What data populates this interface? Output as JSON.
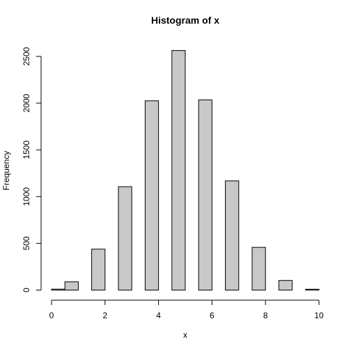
{
  "chart_data": {
    "type": "bar",
    "title": "Histogram of x",
    "xlabel": "x",
    "ylabel": "Frequency",
    "xlim": [
      0,
      10
    ],
    "ylim": [
      0,
      2500
    ],
    "x_ticks": [
      0,
      2,
      4,
      6,
      8,
      10
    ],
    "y_ticks": [
      0,
      500,
      1000,
      1500,
      2000,
      2500
    ],
    "bins": [
      {
        "start": 0.0,
        "end": 0.5,
        "count": 10
      },
      {
        "start": 0.5,
        "end": 1.0,
        "count": 88
      },
      {
        "start": 1.0,
        "end": 1.5,
        "count": 0
      },
      {
        "start": 1.5,
        "end": 2.0,
        "count": 438
      },
      {
        "start": 2.0,
        "end": 2.5,
        "count": 0
      },
      {
        "start": 2.5,
        "end": 3.0,
        "count": 1106
      },
      {
        "start": 3.0,
        "end": 3.5,
        "count": 0
      },
      {
        "start": 3.5,
        "end": 4.0,
        "count": 2025
      },
      {
        "start": 4.0,
        "end": 4.5,
        "count": 0
      },
      {
        "start": 4.5,
        "end": 5.0,
        "count": 2563
      },
      {
        "start": 5.0,
        "end": 5.5,
        "count": 0
      },
      {
        "start": 5.5,
        "end": 6.0,
        "count": 2035
      },
      {
        "start": 6.0,
        "end": 6.5,
        "count": 0
      },
      {
        "start": 6.5,
        "end": 7.0,
        "count": 1168
      },
      {
        "start": 7.0,
        "end": 7.5,
        "count": 0
      },
      {
        "start": 7.5,
        "end": 8.0,
        "count": 457
      },
      {
        "start": 8.0,
        "end": 8.5,
        "count": 0
      },
      {
        "start": 8.5,
        "end": 9.0,
        "count": 103
      },
      {
        "start": 9.0,
        "end": 9.5,
        "count": 0
      },
      {
        "start": 9.5,
        "end": 10.0,
        "count": 9
      }
    ],
    "bar_fill": "#c8c8c8",
    "bar_stroke": "#000000",
    "grid": false,
    "legend": "none"
  }
}
